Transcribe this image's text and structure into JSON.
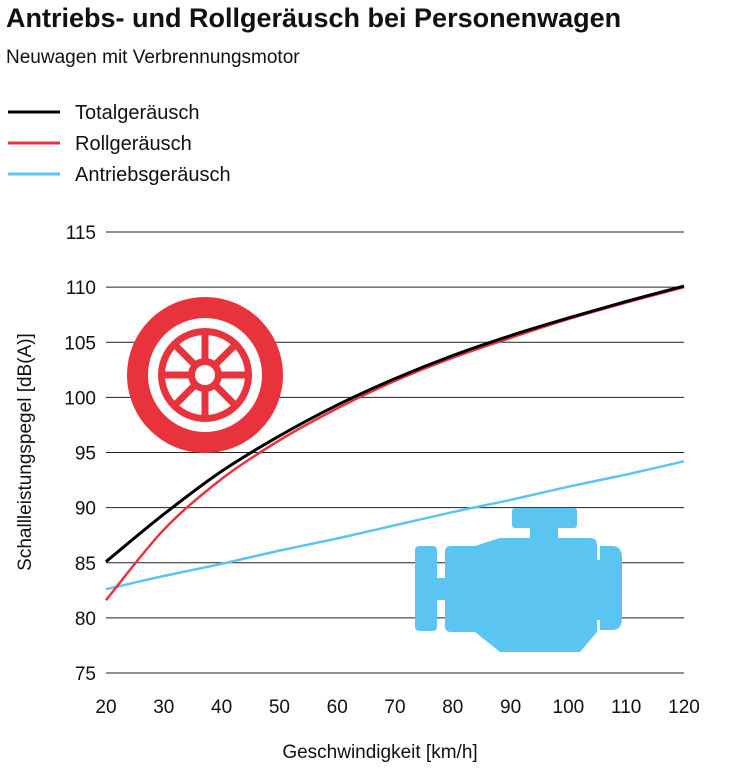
{
  "chart_data": {
    "type": "line",
    "title": "Antriebs- und Rollgeräusch bei Personenwagen",
    "subtitle": "Neuwagen mit Verbrennungsmotor",
    "xlabel": "Geschwindigkeit [km/h]",
    "ylabel": "Schallleistungspegel [dB(A)]",
    "xlim": [
      20,
      120
    ],
    "ylim": [
      75,
      115
    ],
    "xticks": [
      20,
      30,
      40,
      50,
      60,
      70,
      80,
      90,
      100,
      110,
      120
    ],
    "yticks": [
      75,
      80,
      85,
      90,
      95,
      100,
      105,
      110,
      115
    ],
    "grid": "horizontal",
    "legend_placement": "top-left",
    "x": [
      20,
      30,
      40,
      50,
      60,
      70,
      80,
      90,
      100,
      110,
      120
    ],
    "series": [
      {
        "name": "Totalgeräusch",
        "color": "#000000",
        "values": [
          85.1,
          89.4,
          93.3,
          96.5,
          99.3,
          101.7,
          103.8,
          105.6,
          107.2,
          108.7,
          110.1
        ]
      },
      {
        "name": "Rollgeräusch",
        "color": "#e8333c",
        "values": [
          81.6,
          88.0,
          92.6,
          96.1,
          99.0,
          101.5,
          103.6,
          105.4,
          107.1,
          108.6,
          110.0
        ]
      },
      {
        "name": "Antriebsgeräusch",
        "color": "#5bc4f1",
        "values": [
          82.6,
          83.8,
          84.9,
          86.1,
          87.2,
          88.4,
          89.6,
          90.7,
          91.9,
          93.0,
          94.2
        ]
      }
    ],
    "icons": [
      {
        "name": "wheel-icon",
        "color": "#e8333c"
      },
      {
        "name": "engine-icon",
        "color": "#5bc4f1"
      }
    ]
  }
}
